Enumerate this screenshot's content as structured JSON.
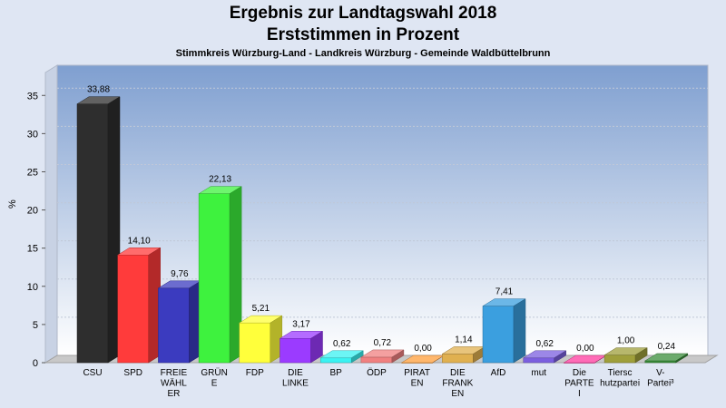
{
  "title": "Ergebnis zur Landtagswahl 2018",
  "title2": "Erststimmen in Prozent",
  "subtitle": "Stimmkreis Würzburg-Land - Landkreis Würzburg - Gemeinde Waldbüttelbrunn",
  "colors": {
    "background": "#dfe6f3",
    "plot_top": "#7f9fd0",
    "plot_bottom": "#ffffff"
  },
  "chart_data": {
    "type": "bar",
    "title": "Ergebnis zur Landtagswahl 2018",
    "subtitle": "Erststimmen in Prozent",
    "xlabel": "",
    "ylabel": "%",
    "ylim": [
      0,
      38
    ],
    "yticks": [
      0,
      5,
      10,
      15,
      20,
      25,
      30,
      35
    ],
    "grid": true,
    "categories": [
      [
        "CSU"
      ],
      [
        "SPD"
      ],
      [
        "FREIE",
        "WÄHL",
        "ER"
      ],
      [
        "GRÜN",
        "E"
      ],
      [
        "FDP"
      ],
      [
        "DIE",
        "LINKE"
      ],
      [
        "BP"
      ],
      [
        "ÖDP"
      ],
      [
        "PIRAT",
        "EN"
      ],
      [
        "DIE",
        "FRANK",
        "EN"
      ],
      [
        "AfD"
      ],
      [
        "mut"
      ],
      [
        "Die",
        "PARTE",
        "I"
      ],
      [
        "Tiersc",
        "hutzpartei"
      ],
      [
        "V-",
        "Partei³"
      ]
    ],
    "values": [
      33.88,
      14.1,
      9.76,
      22.13,
      5.21,
      3.17,
      0.62,
      0.72,
      0.0,
      1.14,
      7.41,
      0.62,
      0.0,
      1.0,
      0.24
    ],
    "value_labels": [
      "33,88",
      "14,10",
      "9,76",
      "22,13",
      "5,21",
      "3,17",
      "0,62",
      "0,72",
      "0,00",
      "1,14",
      "7,41",
      "0,62",
      "0,00",
      "1,00",
      "0,24"
    ],
    "bar_colors": [
      "#2e2e2e",
      "#ff3b3b",
      "#3b3bbf",
      "#3ef23e",
      "#ffff3b",
      "#9b3bff",
      "#3bf2f2",
      "#f08080",
      "#ff9f3b",
      "#e0b050",
      "#3b9fdf",
      "#7b5fdf",
      "#ff3b9f",
      "#9f9f3b",
      "#3b8f3b"
    ]
  }
}
